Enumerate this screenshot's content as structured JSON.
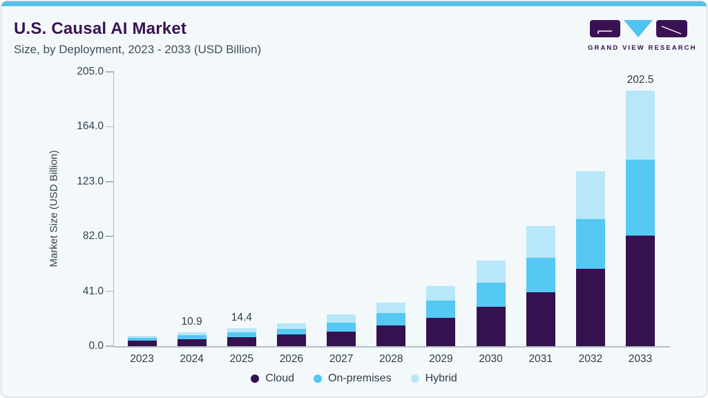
{
  "header": {
    "title": "U.S. Causal AI Market",
    "subtitle": "Size, by Deployment, 2023 - 2033 (USD Billion)",
    "logo_text": "GRAND VIEW RESEARCH"
  },
  "colors": {
    "accent_strip": "#57C0E8",
    "brand_purple": "#3A1153",
    "brand_triangle_blue": "#4EC3EF",
    "title_text": "#3A1153",
    "body_text": "#2F3B47",
    "axis_line": "#AEB4BE",
    "card_background": "#F3F8FB",
    "cloud": "#351150",
    "on_premises": "#55C8F3",
    "hybrid": "#B9E7FA"
  },
  "chart_data": {
    "type": "bar",
    "stacked": true,
    "title": "U.S. Causal AI Market Size, by Deployment, 2023 - 2033 (USD Billion)",
    "xlabel": "",
    "ylabel": "Market Size (USD Billion)",
    "categories": [
      "2023",
      "2024",
      "2025",
      "2026",
      "2027",
      "2028",
      "2029",
      "2030",
      "2031",
      "2032",
      "2033"
    ],
    "series": [
      {
        "name": "Cloud",
        "color": "#351150",
        "values": [
          4.2,
          5.6,
          7.0,
          9.2,
          11.6,
          16.5,
          22.5,
          31.4,
          43.0,
          61.3,
          87.9
        ]
      },
      {
        "name": "On-premises",
        "color": "#55C8F3",
        "values": [
          2.5,
          3.3,
          4.2,
          4.7,
          7.3,
          9.7,
          13.6,
          18.8,
          27.1,
          39.7,
          59.8
        ]
      },
      {
        "name": "Hybrid",
        "color": "#B9E7FA",
        "values": [
          1.5,
          2.0,
          3.2,
          4.2,
          6.4,
          8.6,
          11.7,
          17.7,
          25.4,
          37.4,
          54.8
        ]
      }
    ],
    "totals": [
      8.2,
      10.9,
      14.4,
      18.1,
      25.3,
      34.8,
      47.8,
      67.9,
      95.5,
      138.4,
      202.5
    ],
    "bar_labels": {
      "2024": "10.9",
      "2025": "14.4",
      "2033": "202.5"
    },
    "y_ticks": [
      "0.0",
      "41.0",
      "82.0",
      "123.0",
      "164.0",
      "205.0"
    ],
    "ylim": [
      0,
      205
    ],
    "grid": false,
    "legend_position": "bottom"
  }
}
